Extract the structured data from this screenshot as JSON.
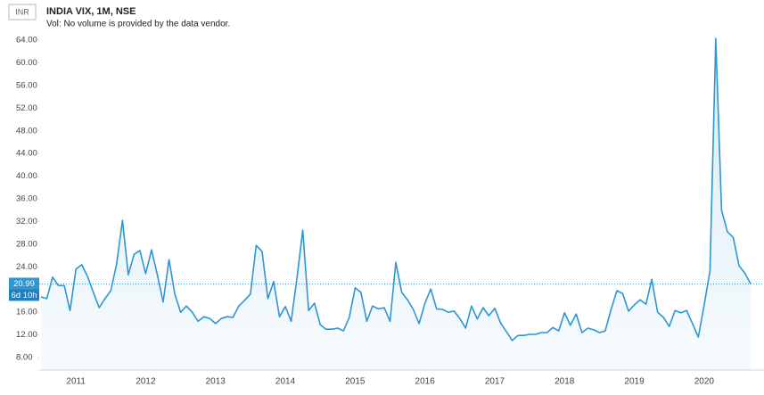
{
  "chart_data": {
    "type": "line",
    "currency": "INR",
    "title": "INDIA VIX, 1M, NSE",
    "subtitle": "Vol: No volume is provided by the data vendor.",
    "color": "#2e96d2",
    "categories": [
      null,
      null,
      null,
      null,
      null,
      null,
      "2011",
      null,
      null,
      null,
      null,
      null,
      null,
      null,
      null,
      null,
      null,
      null,
      "2012",
      null,
      null,
      null,
      null,
      null,
      null,
      null,
      null,
      null,
      null,
      null,
      "2013",
      null,
      null,
      null,
      null,
      null,
      null,
      null,
      null,
      null,
      null,
      null,
      "2014",
      null,
      null,
      null,
      null,
      null,
      null,
      null,
      null,
      null,
      null,
      null,
      "2015",
      null,
      null,
      null,
      null,
      null,
      null,
      null,
      null,
      null,
      null,
      null,
      "2016",
      null,
      null,
      null,
      null,
      null,
      null,
      null,
      null,
      null,
      null,
      null,
      "2017",
      null,
      null,
      null,
      null,
      null,
      null,
      null,
      null,
      null,
      null,
      null,
      "2018",
      null,
      null,
      null,
      null,
      null,
      null,
      null,
      null,
      null,
      null,
      null,
      "2019",
      null,
      null,
      null,
      null,
      null,
      null,
      null,
      null,
      null,
      null,
      null,
      "2020",
      null,
      null,
      null,
      null,
      null,
      null,
      null,
      null
    ],
    "values": [
      18.7,
      18.4,
      22.2,
      20.7,
      20.7,
      16.3,
      23.6,
      24.4,
      22.3,
      19.5,
      16.8,
      18.4,
      19.8,
      24.5,
      32.2,
      22.6,
      26.2,
      26.9,
      22.8,
      27.0,
      22.6,
      17.8,
      25.3,
      19.2,
      16.0,
      17.1,
      16.0,
      14.4,
      15.2,
      14.9,
      14.0,
      14.9,
      15.2,
      15.1,
      17.1,
      18.1,
      19.2,
      27.8,
      26.7,
      18.4,
      21.4,
      15.2,
      17.0,
      14.4,
      22.0,
      30.5,
      16.3,
      17.6,
      13.8,
      13.0,
      13.0,
      13.2,
      12.7,
      15.1,
      20.3,
      19.5,
      14.4,
      17.1,
      16.6,
      16.8,
      14.4,
      24.8,
      19.5,
      18.2,
      16.5,
      14.0,
      17.6,
      20.1,
      16.6,
      16.5,
      16.0,
      16.2,
      14.9,
      13.2,
      17.1,
      14.8,
      16.8,
      15.4,
      16.7,
      14.1,
      12.6,
      11.0,
      11.9,
      11.9,
      12.1,
      12.1,
      12.4,
      12.4,
      13.3,
      12.7,
      15.9,
      13.7,
      15.7,
      12.4,
      13.2,
      12.9,
      12.4,
      12.7,
      16.5,
      19.8,
      19.3,
      16.2,
      17.3,
      18.2,
      17.4,
      21.8,
      16.0,
      15.1,
      13.5,
      16.3,
      15.9,
      16.3,
      14.0,
      11.6,
      17.3,
      23.3,
      64.3,
      34.0,
      30.2,
      29.2,
      24.2,
      22.9,
      20.99
    ],
    "ylim": [
      5.8,
      69.2
    ],
    "yticks": [
      {
        "value": 8,
        "label": "8.00"
      },
      {
        "value": 12,
        "label": "12.00"
      },
      {
        "value": 16,
        "label": "16.00"
      },
      {
        "value": 20,
        "label": "20.00"
      },
      {
        "value": 24,
        "label": "24.00"
      },
      {
        "value": 28,
        "label": "28.00"
      },
      {
        "value": 32,
        "label": "32.00"
      },
      {
        "value": 36,
        "label": "36.00"
      },
      {
        "value": 40,
        "label": "40.00"
      },
      {
        "value": 44,
        "label": "44.00"
      },
      {
        "value": 48,
        "label": "48.00"
      },
      {
        "value": 52,
        "label": "52.00"
      },
      {
        "value": 56,
        "label": "56.00"
      },
      {
        "value": 60,
        "label": "60.00"
      },
      {
        "value": 64,
        "label": "64.00"
      }
    ],
    "last_price": 20.99,
    "countdown": "6d 10h"
  }
}
